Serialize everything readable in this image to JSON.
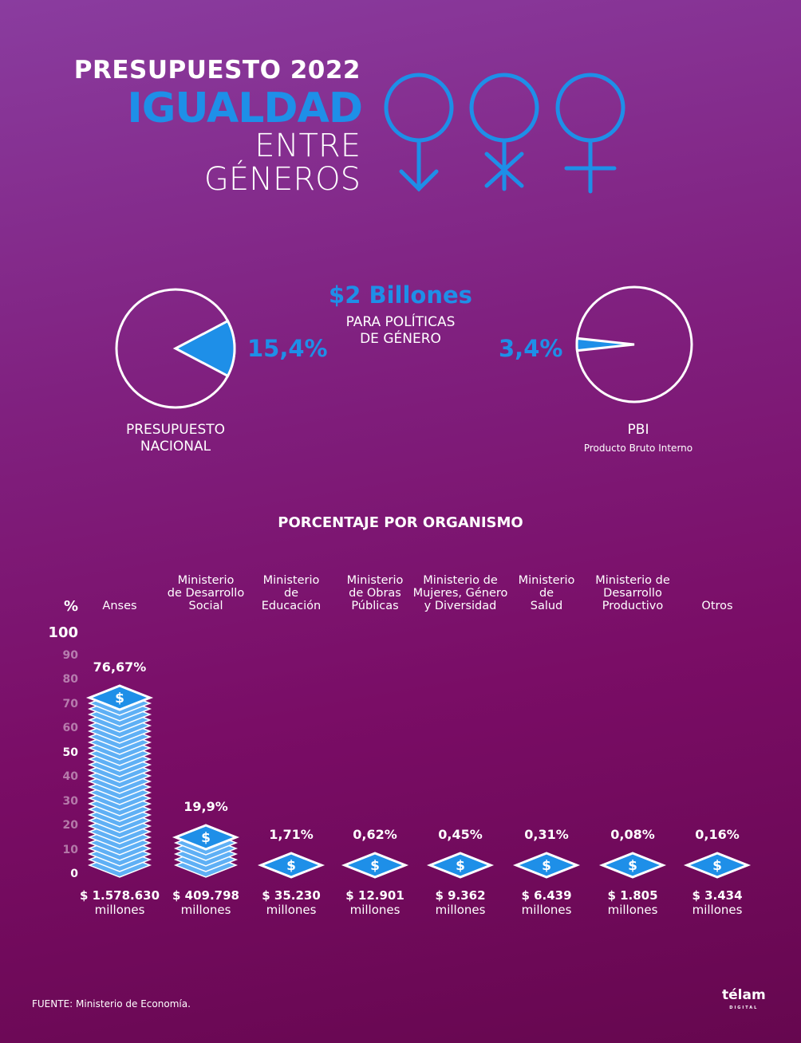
{
  "header": {
    "line1": "PRESUPUESTO 2022",
    "line2": "IGUALDAD",
    "line3": "ENTRE",
    "line4": "GÉNEROS",
    "icons": [
      "female-symbol-arrow-icon",
      "female-symbol-asterisk-icon",
      "female-symbol-cross-icon"
    ]
  },
  "summary": {
    "amount": "$2 Billones",
    "subtitle1": "PARA POLÍTICAS",
    "subtitle2": "DE GÉNERO"
  },
  "pies": [
    {
      "value": 15.4,
      "label": "15,4%",
      "caption1": "PRESUPUESTO",
      "caption2": "NACIONAL"
    },
    {
      "value": 3.4,
      "label": "3,4%",
      "caption1": "PBI",
      "caption2": "Producto Bruto Interno"
    }
  ],
  "colors": {
    "accent": "#1e8fe8",
    "stack": "#5fb0f5",
    "background_top": "#8a3c9f",
    "background_bottom": "#66074f"
  },
  "chart_data": {
    "type": "bar",
    "title": "PORCENTAJE POR ORGANISMO",
    "ylabel": "%",
    "ylim": [
      0,
      100
    ],
    "yticks": [
      0,
      10,
      20,
      30,
      40,
      50,
      60,
      70,
      80,
      90,
      100
    ],
    "categories": [
      "Anses",
      "Ministerio de Desarrollo Social",
      "Ministerio de Educación",
      "Ministerio de Obras Públicas",
      "Ministerio de Mujeres, Género y Diversidad",
      "Ministerio de Salud",
      "Ministerio de Desarrollo Productivo",
      "Otros"
    ],
    "category_lines": [
      [
        "Anses"
      ],
      [
        "Ministerio",
        "de Desarrollo",
        "Social"
      ],
      [
        "Ministerio",
        "de",
        "Educación"
      ],
      [
        "Ministerio",
        "de Obras",
        "Públicas"
      ],
      [
        "Ministerio de",
        "Mujeres, Género",
        "y Diversidad"
      ],
      [
        "Ministerio",
        "de",
        "Salud"
      ],
      [
        "Ministerio de",
        "Desarrollo",
        "Productivo"
      ],
      [
        "Otros"
      ]
    ],
    "values": [
      76.67,
      19.9,
      1.71,
      0.62,
      0.45,
      0.31,
      0.08,
      0.16
    ],
    "value_labels": [
      "76,67%",
      "19,9%",
      "1,71%",
      "0,62%",
      "0,45%",
      "0,31%",
      "0,08%",
      "0,16%"
    ],
    "amounts": [
      "$ 1.578.630",
      "$ 409.798",
      "$ 35.230",
      "$ 12.901",
      "$ 9.362",
      "$ 6.439",
      "$ 1.805",
      "$ 3.434"
    ],
    "amount_unit": "millones",
    "grid": false
  },
  "footer": {
    "source": "FUENTE:  Ministerio de Economía.",
    "logo": "télam DIGITAL"
  }
}
